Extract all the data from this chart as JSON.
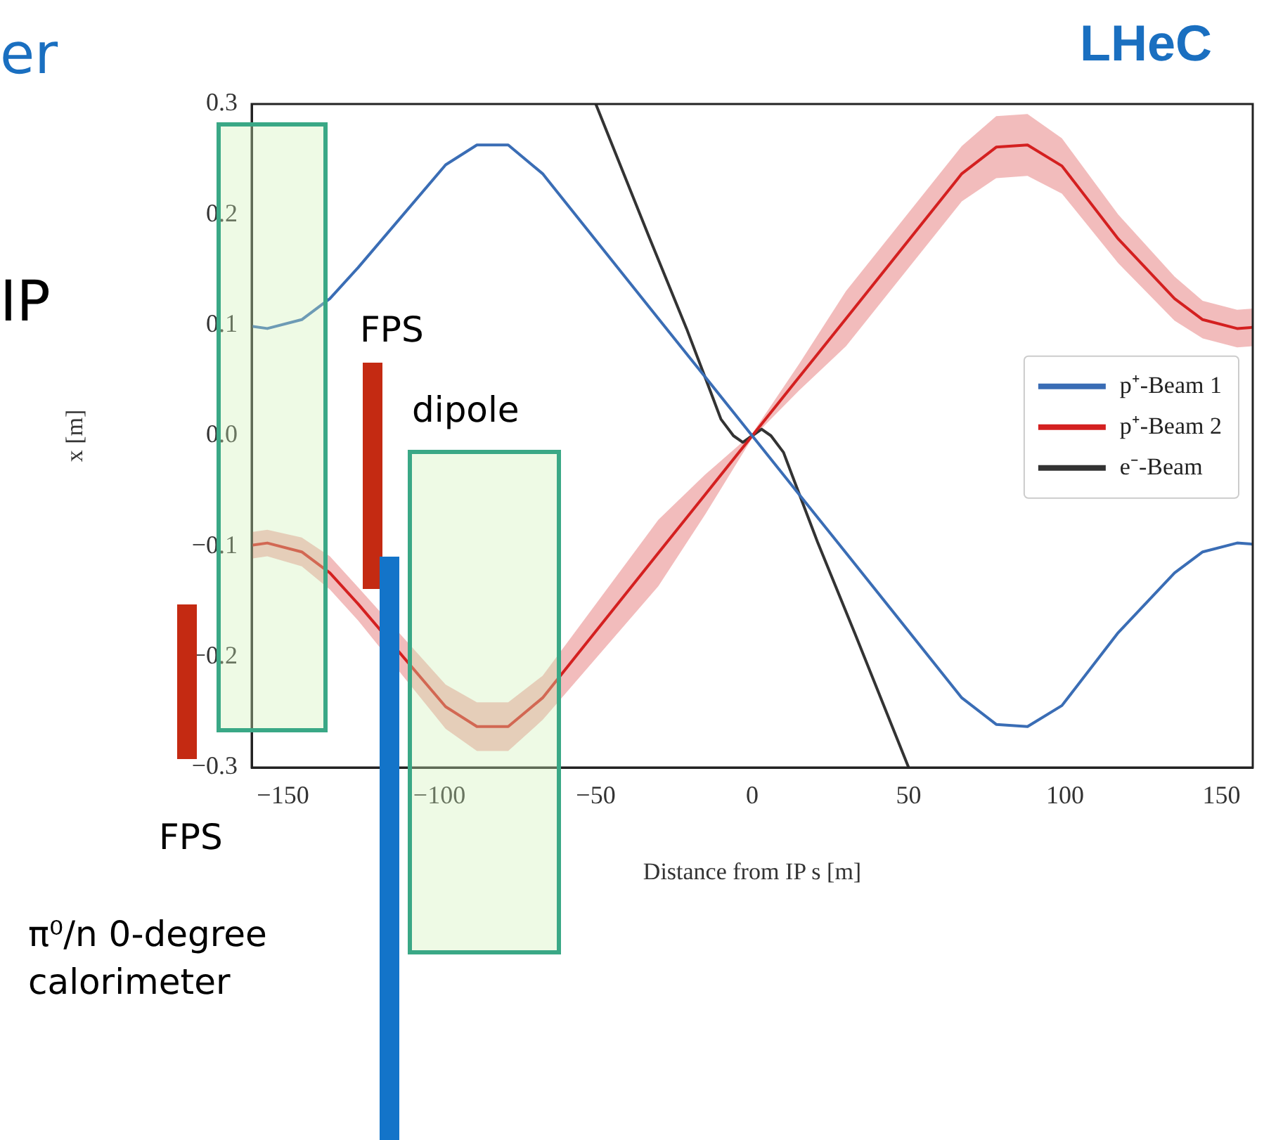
{
  "chart_data": {
    "type": "line",
    "xlabel": "Distance from IP s [m]",
    "ylabel": "x [m]",
    "xlim": [
      -160,
      160
    ],
    "xticks": [
      -150,
      -100,
      -50,
      0,
      50,
      100,
      150
    ],
    "ylim": [
      -0.3,
      0.3
    ],
    "yticks": [
      {
        "value": -0.3,
        "label": "−0.3"
      },
      {
        "value": -0.2,
        "label": "−0.2"
      },
      {
        "value": -0.1,
        "label": "−0.1"
      },
      {
        "value": 0,
        "label": "0.0"
      },
      {
        "value": 0.1,
        "label": "0.1"
      },
      {
        "value": 0.2,
        "label": "0.2"
      },
      {
        "value": 0.3,
        "label": "0.3"
      }
    ],
    "legend": "right",
    "line_style": "solid",
    "series": [
      {
        "name": "p⁺-Beam 1",
        "color": "#3a6db5",
        "x": [
          -160,
          -155,
          -144,
          -135,
          -126,
          -98,
          -88,
          -78,
          -67,
          -30,
          -15,
          0,
          15,
          30,
          67,
          78,
          88,
          99,
          117,
          135,
          144,
          155,
          160
        ],
        "values": [
          0.099,
          0.097,
          0.105,
          0.124,
          0.152,
          0.245,
          0.263,
          0.263,
          0.237,
          0.106,
          0.053,
          0,
          -0.053,
          -0.106,
          -0.237,
          -0.261,
          -0.263,
          -0.244,
          -0.178,
          -0.124,
          -0.105,
          -0.097,
          -0.098
        ]
      },
      {
        "name": "p⁺-Beam 2",
        "color": "#d42020",
        "x": [
          -160,
          -155,
          -144,
          -135,
          -126,
          -98,
          -88,
          -78,
          -67,
          -30,
          -15,
          0,
          15,
          30,
          67,
          78,
          88,
          99,
          117,
          135,
          144,
          155,
          160
        ],
        "values": [
          -0.099,
          -0.097,
          -0.105,
          -0.124,
          -0.152,
          -0.245,
          -0.263,
          -0.263,
          -0.237,
          -0.106,
          -0.053,
          0,
          0.053,
          0.106,
          0.237,
          0.261,
          0.263,
          0.244,
          0.178,
          0.124,
          0.105,
          0.097,
          0.098
        ],
        "lower": [
          -0.111,
          -0.109,
          -0.118,
          -0.139,
          -0.167,
          -0.265,
          -0.285,
          -0.285,
          -0.257,
          -0.136,
          -0.071,
          -0.002,
          0.041,
          0.081,
          0.212,
          0.233,
          0.235,
          0.219,
          0.156,
          0.104,
          0.088,
          0.08,
          0.081
        ],
        "upper": [
          -0.087,
          -0.085,
          -0.092,
          -0.109,
          -0.137,
          -0.225,
          -0.241,
          -0.241,
          -0.217,
          -0.076,
          -0.035,
          0.002,
          0.065,
          0.131,
          0.262,
          0.289,
          0.291,
          0.269,
          0.2,
          0.144,
          0.122,
          0.114,
          0.115
        ]
      },
      {
        "name": "e⁻-Beam",
        "color": "#333333",
        "x": [
          -50,
          -33,
          -21,
          -14,
          -10,
          -6,
          -3,
          0,
          3,
          6,
          10,
          14,
          21,
          33,
          50
        ],
        "values": [
          0.3,
          0.18,
          0.097,
          0.045,
          0.015,
          0,
          -0.006,
          0,
          0.006,
          0,
          -0.015,
          -0.045,
          -0.097,
          -0.18,
          -0.3
        ]
      }
    ],
    "annotations": [
      "LHeC",
      "er",
      "IP",
      "FPS",
      "dipole",
      "FPS",
      "π⁰/n 0-degree calorimeter"
    ]
  }
}
